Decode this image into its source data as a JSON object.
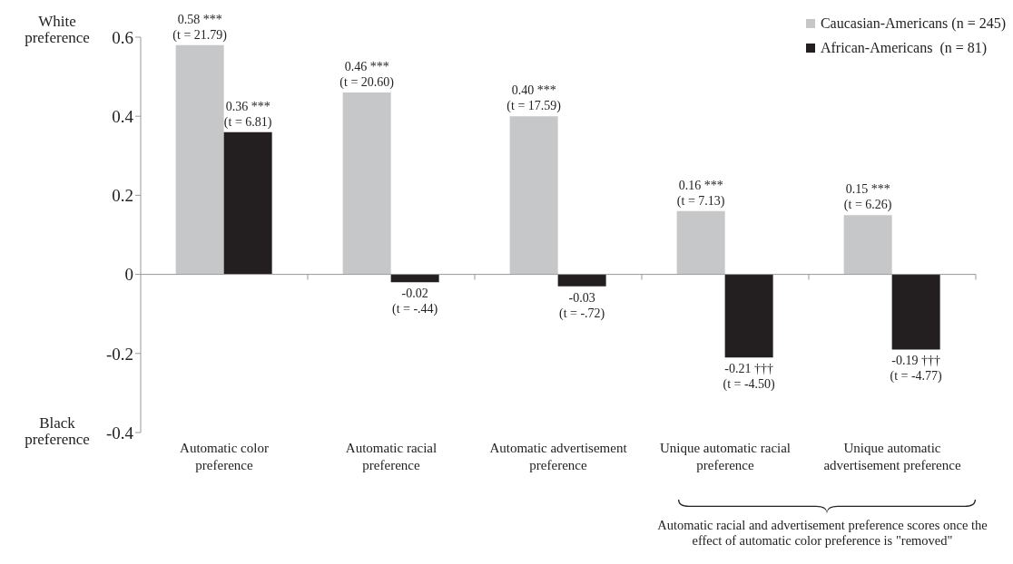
{
  "chart_data": {
    "type": "bar",
    "categories": [
      "Automatic color preference",
      "Automatic racial preference",
      "Automatic advertisement preference",
      "Unique automatic racial preference",
      "Unique automatic advertisement preference"
    ],
    "series": [
      {
        "name": "Caucasian-Americans (n = 245)",
        "color": "#c6c7c9",
        "values": [
          0.58,
          0.46,
          0.4,
          0.16,
          0.15
        ],
        "value_labels": [
          "0.58 ***\n(t = 21.79)",
          "0.46 ***\n(t = 20.60)",
          "0.40 ***\n(t = 17.59)",
          "0.16 ***\n(t = 7.13)",
          "0.15 ***\n(t = 6.26)"
        ]
      },
      {
        "name": "African-Americans  (n = 81)",
        "color": "#231f20",
        "values": [
          0.36,
          -0.02,
          -0.03,
          -0.21,
          -0.19
        ],
        "value_labels": [
          "0.36 ***\n(t = 6.81)",
          "-0.02\n(t = -.44)",
          "-0.03\n(t = -.72)",
          "-0.21 †††\n(t = -4.50)",
          "-0.19 †††\n(t = -4.77)"
        ]
      }
    ],
    "ylim": [
      -0.4,
      0.6
    ],
    "yticks": [
      -0.4,
      -0.2,
      0,
      0.2,
      0.4,
      0.6
    ],
    "grid": false,
    "ref_lines": [
      {
        "axis": "y",
        "value": 0,
        "color": "#999999"
      }
    ],
    "legend": "top right",
    "annotations": [
      "White preference",
      "Black preference",
      "Automatic racial and advertisement preference scores once the effect of automatic color preference is \"removed\""
    ]
  }
}
